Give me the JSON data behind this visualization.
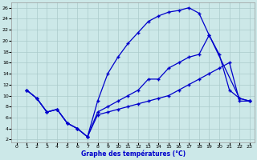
{
  "xlabel": "Graphe des températures (°C)",
  "background_color": "#cce8e8",
  "grid_color": "#aacaca",
  "line_color": "#0000cc",
  "xlim": [
    -0.5,
    23.5
  ],
  "ylim": [
    1.5,
    27
  ],
  "xticks": [
    0,
    1,
    2,
    3,
    4,
    5,
    6,
    7,
    8,
    9,
    10,
    11,
    12,
    13,
    14,
    15,
    16,
    17,
    18,
    19,
    20,
    21,
    22,
    23
  ],
  "yticks": [
    2,
    4,
    6,
    8,
    10,
    12,
    14,
    16,
    18,
    20,
    22,
    24,
    26
  ],
  "line1_x": [
    1,
    2,
    3,
    4,
    5,
    6,
    7,
    8,
    9,
    10,
    11,
    12,
    13,
    14,
    15,
    16,
    17,
    18,
    19,
    20,
    21,
    22,
    23
  ],
  "line1_y": [
    11,
    9.5,
    7,
    7.5,
    5,
    4,
    2.5,
    7,
    8,
    9,
    10,
    11,
    13,
    13,
    15,
    16,
    17,
    17.5,
    21,
    17.5,
    11,
    9.5,
    9
  ],
  "line2_x": [
    1,
    2,
    3,
    4,
    5,
    6,
    7,
    8,
    9,
    10,
    11,
    12,
    13,
    14,
    15,
    16,
    17,
    18,
    19,
    22,
    23
  ],
  "line2_y": [
    11,
    9.5,
    7,
    7.5,
    5,
    4,
    2.5,
    9,
    14,
    17,
    19.5,
    21.5,
    23.5,
    24.5,
    25.2,
    25.5,
    26,
    25,
    21,
    9.5,
    9
  ],
  "line3_x": [
    1,
    2,
    3,
    4,
    5,
    6,
    7,
    8,
    9,
    10,
    11,
    12,
    13,
    14,
    15,
    16,
    17,
    18,
    19,
    20,
    21,
    22,
    23
  ],
  "line3_y": [
    11,
    9.5,
    7,
    7.5,
    5,
    4,
    2.5,
    6.5,
    7,
    7.5,
    8,
    8.5,
    9,
    9.5,
    10,
    11,
    12,
    13,
    14,
    15,
    16,
    9,
    9
  ]
}
